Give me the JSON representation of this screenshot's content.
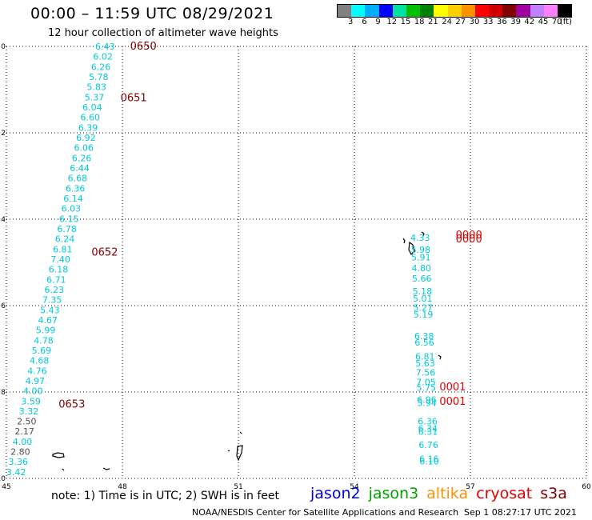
{
  "header": {
    "title": "00:00 – 11:59 UTC 08/29/2021",
    "subtitle": "12 hour collection of altimeter wave heights"
  },
  "colorbar": {
    "swatches": [
      "#808080",
      "#00ffff",
      "#00b0ff",
      "#0000ff",
      "#00e0a0",
      "#00c000",
      "#008000",
      "#ffff00",
      "#ffd000",
      "#ff9000",
      "#ff0000",
      "#d00000",
      "#800000",
      "#a000a0",
      "#c080ff",
      "#ff80ff",
      "#000000"
    ],
    "labels": [
      "3",
      "6",
      "9",
      "12",
      "15",
      "18",
      "21",
      "24",
      "27",
      "30",
      "33",
      "36",
      "39",
      "42",
      "45",
      "70",
      "(ft)"
    ]
  },
  "axes": {
    "x_ticks": [
      "45",
      "48",
      "51",
      "54",
      "57",
      "60"
    ],
    "y_ticks": [
      "0",
      "−2",
      "−4",
      "−6",
      "−8",
      "−10"
    ],
    "x_values": [
      45,
      48,
      51,
      54,
      57,
      60
    ],
    "y_values": [
      0,
      -2,
      -4,
      -6,
      -8,
      -10
    ],
    "xlim": [
      45,
      60
    ],
    "ylim": [
      -10,
      0
    ]
  },
  "colors": {
    "cyan": "#00c8d8",
    "gray": "#505050",
    "darkred": "#800000",
    "red": "#e00000"
  },
  "track_west": [
    {
      "v": "6.43",
      "c": "cyan"
    },
    {
      "v": "6.02",
      "c": "cyan"
    },
    {
      "v": "6.26",
      "c": "cyan"
    },
    {
      "v": "5.78",
      "c": "cyan"
    },
    {
      "v": "5.83",
      "c": "cyan"
    },
    {
      "v": "5.37",
      "c": "cyan"
    },
    {
      "v": "6.04",
      "c": "cyan"
    },
    {
      "v": "6.60",
      "c": "cyan"
    },
    {
      "v": "6.39",
      "c": "cyan"
    },
    {
      "v": "6.92",
      "c": "cyan"
    },
    {
      "v": "6.06",
      "c": "cyan"
    },
    {
      "v": "6.26",
      "c": "cyan"
    },
    {
      "v": "6.44",
      "c": "cyan"
    },
    {
      "v": "6.68",
      "c": "cyan"
    },
    {
      "v": "6.36",
      "c": "cyan"
    },
    {
      "v": "6.14",
      "c": "cyan"
    },
    {
      "v": "6.03",
      "c": "cyan"
    },
    {
      "v": "6.15",
      "c": "cyan"
    },
    {
      "v": "6.78",
      "c": "cyan"
    },
    {
      "v": "6.24",
      "c": "cyan"
    },
    {
      "v": "6.81",
      "c": "cyan"
    },
    {
      "v": "7.40",
      "c": "cyan"
    },
    {
      "v": "6.18",
      "c": "cyan"
    },
    {
      "v": "6.71",
      "c": "cyan"
    },
    {
      "v": "6.23",
      "c": "cyan"
    },
    {
      "v": "7.35",
      "c": "cyan"
    },
    {
      "v": "5.43",
      "c": "cyan"
    },
    {
      "v": "4.67",
      "c": "cyan"
    },
    {
      "v": "5.99",
      "c": "cyan"
    },
    {
      "v": "4.78",
      "c": "cyan"
    },
    {
      "v": "5.69",
      "c": "cyan"
    },
    {
      "v": "4.68",
      "c": "cyan"
    },
    {
      "v": "4.76",
      "c": "cyan"
    },
    {
      "v": "4.97",
      "c": "cyan"
    },
    {
      "v": "4.00",
      "c": "cyan"
    },
    {
      "v": "3.59",
      "c": "cyan"
    },
    {
      "v": "3.32",
      "c": "cyan"
    },
    {
      "v": "2.50",
      "c": "gray"
    },
    {
      "v": "2.17",
      "c": "gray"
    },
    {
      "v": "4.00",
      "c": "cyan"
    },
    {
      "v": "2.80",
      "c": "gray"
    },
    {
      "v": "3.36",
      "c": "cyan"
    },
    {
      "v": "3.42",
      "c": "cyan"
    }
  ],
  "track_east": [
    {
      "v": "4.33",
      "lat": -4.43
    },
    {
      "v": "5.98",
      "lat": -4.7
    },
    {
      "v": "5.91",
      "lat": -4.88
    },
    {
      "v": "4.80",
      "lat": -5.13
    },
    {
      "v": "5.66",
      "lat": -5.37
    },
    {
      "v": "5.18",
      "lat": -5.67
    },
    {
      "v": "5.01",
      "lat": -5.83
    },
    {
      "v": "5.27",
      "lat": -6.05
    },
    {
      "v": "5.19",
      "lat": -6.2
    },
    {
      "v": "6.38",
      "lat": -6.7
    },
    {
      "v": "6.56",
      "lat": -6.85
    },
    {
      "v": "6.81",
      "lat": -7.18
    },
    {
      "v": "5.63",
      "lat": -7.33
    },
    {
      "v": "7.56",
      "lat": -7.55
    },
    {
      "v": "7.05",
      "lat": -7.77
    },
    {
      "v": "5.75",
      "lat": -7.9
    },
    {
      "v": "6.96",
      "lat": -8.18
    },
    {
      "v": "5.94",
      "lat": -8.25
    },
    {
      "v": "6.36",
      "lat": -8.68
    },
    {
      "v": "6.34",
      "lat": -8.84
    },
    {
      "v": "6.31",
      "lat": -8.92
    },
    {
      "v": "6.76",
      "lat": -9.22
    },
    {
      "v": "6.16",
      "lat": -9.55
    },
    {
      "v": "6.10",
      "lat": -9.6
    }
  ],
  "time_labels": [
    {
      "t": "0650",
      "lon": 48.2,
      "lat": 0.02,
      "c": "darkred"
    },
    {
      "t": "0651",
      "lon": 47.95,
      "lat": -1.18,
      "c": "darkred"
    },
    {
      "t": "0652",
      "lon": 47.2,
      "lat": -4.75,
      "c": "darkred"
    },
    {
      "t": "0653",
      "lon": 46.35,
      "lat": -8.27,
      "c": "darkred"
    },
    {
      "t": "0000",
      "lon": 56.62,
      "lat": -4.35,
      "c": "red"
    },
    {
      "t": "0000",
      "lon": 56.62,
      "lat": -4.44,
      "c": "red"
    },
    {
      "t": "0001",
      "lon": 56.2,
      "lat": -7.87,
      "c": "red"
    },
    {
      "t": "0001",
      "lon": 56.2,
      "lat": -8.2,
      "c": "red"
    }
  ],
  "note": "note:  1) Time is in UTC;  2) SWH is in feet",
  "legend": [
    {
      "name": "jason2",
      "color": "#0000e0"
    },
    {
      "name": "jason3",
      "color": "#00a000"
    },
    {
      "name": "altika",
      "color": "#ff9000"
    },
    {
      "name": "cryosat",
      "color": "#e00000"
    },
    {
      "name": "s3a",
      "color": "#800000"
    }
  ],
  "footer": {
    "credit": "NOAA/NESDIS Center for Satellite Applications and Research",
    "timestamp": "Sep  1 08:27:17 UTC 2021"
  }
}
